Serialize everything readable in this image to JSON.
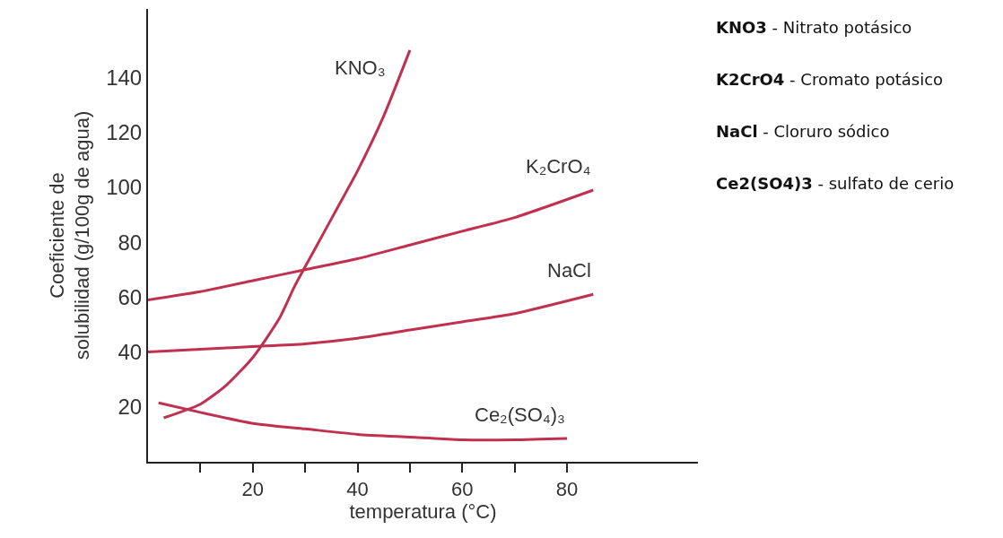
{
  "chart_data": {
    "type": "line",
    "xlabel": "temperatura (°C)",
    "ylabel": "Coeficiente de solubilidad (g/100g de agua)",
    "xlim": [
      0,
      105
    ],
    "ylim": [
      0,
      165
    ],
    "xticks": [
      {
        "value": 10,
        "label": null
      },
      20,
      {
        "value": 30,
        "label": null
      },
      40,
      {
        "value": 50,
        "label": null
      },
      60,
      {
        "value": 70,
        "label": null
      },
      80
    ],
    "yticks": [
      20,
      40,
      60,
      80,
      100,
      120,
      140
    ],
    "grid": false,
    "legend": false,
    "marker": "none",
    "line_style": "solid",
    "series": [
      {
        "name": "KNO₃",
        "color": "#c0304f",
        "x": [
          3,
          10,
          15,
          20,
          25,
          28,
          32,
          36,
          40,
          45,
          50
        ],
        "values": [
          16,
          21,
          28,
          38,
          52,
          64,
          78,
          92,
          106,
          126,
          150
        ]
      },
      {
        "name": "K₂CrO₄",
        "color": "#c0304f",
        "x": [
          0,
          10,
          20,
          30,
          40,
          50,
          60,
          70,
          85
        ],
        "values": [
          59,
          62,
          66,
          70,
          74,
          79,
          84,
          89,
          99
        ]
      },
      {
        "name": "NaCl",
        "color": "#c0304f",
        "x": [
          0,
          10,
          20,
          30,
          40,
          50,
          60,
          70,
          85
        ],
        "values": [
          40,
          41,
          42,
          43,
          45,
          48,
          51,
          54,
          61
        ]
      },
      {
        "name": "Ce₂(SO₄)₃",
        "color": "#c0304f",
        "x": [
          2,
          10,
          20,
          30,
          40,
          50,
          60,
          70,
          80
        ],
        "values": [
          21.5,
          18,
          14,
          12,
          10,
          9,
          8,
          8,
          8.5
        ]
      }
    ],
    "annotations": [
      "KNO3 - Nitrato potásico",
      "K2CrO4 - Cromato potásico",
      "NaCl - Cloruro sódico",
      "Ce2(SO4)3 - sulfato de cerio"
    ]
  }
}
